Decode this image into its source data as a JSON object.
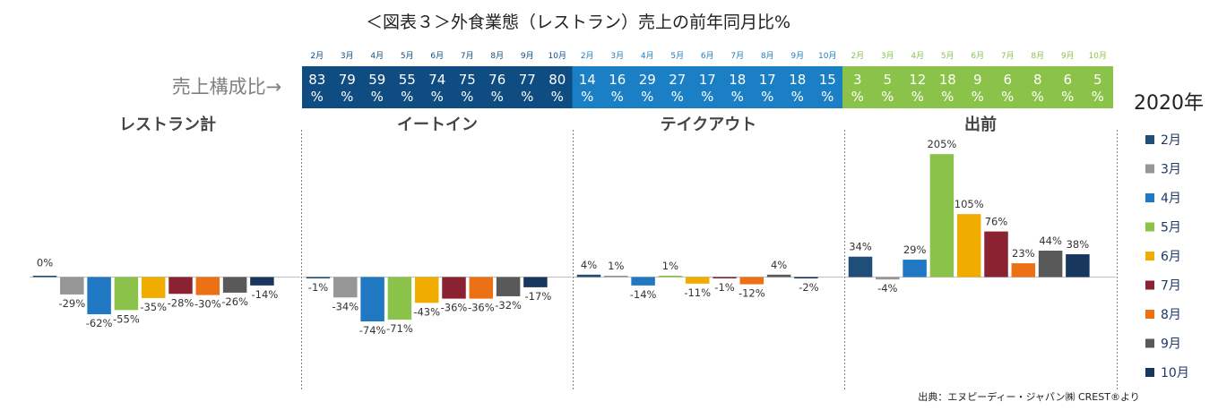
{
  "chart_data": {
    "type": "bar",
    "title": "＜図表３＞外食業態（レストラン）売上の前年同月比%",
    "year_label": "2020年",
    "source": "出典：エヌピーディー・ジャパン㈱ CREST®より",
    "composition_label": "売上構成比→",
    "months": [
      "2月",
      "3月",
      "4月",
      "5月",
      "6月",
      "7月",
      "8月",
      "9月",
      "10月"
    ],
    "colors": [
      "#1f4e79",
      "#969696",
      "#1f78c1",
      "#8bc34a",
      "#f0ad00",
      "#8b2232",
      "#ec7014",
      "#595959",
      "#17375e"
    ],
    "groups": [
      {
        "name": "レストラン計",
        "composition": null,
        "values": [
          0,
          -29,
          -62,
          -55,
          -35,
          -28,
          -30,
          -26,
          -14
        ]
      },
      {
        "name": "イートイン",
        "composition": [
          83,
          79,
          59,
          55,
          74,
          75,
          76,
          77,
          80
        ],
        "values": [
          -1,
          -34,
          -74,
          -71,
          -43,
          -36,
          -36,
          -32,
          -17
        ]
      },
      {
        "name": "テイクアウト",
        "composition": [
          14,
          16,
          29,
          27,
          17,
          18,
          17,
          18,
          15
        ],
        "values": [
          4,
          1,
          -14,
          1,
          -11,
          -1,
          -12,
          4,
          -2
        ]
      },
      {
        "name": "出前",
        "composition": [
          3,
          5,
          12,
          18,
          9,
          6,
          8,
          6,
          5
        ],
        "values": [
          34,
          -4,
          29,
          205,
          105,
          76,
          23,
          44,
          38
        ]
      }
    ],
    "composition_colors": [
      "#0f4c81",
      "#1a7fc4",
      "#8bc34a"
    ],
    "unit": "%"
  }
}
